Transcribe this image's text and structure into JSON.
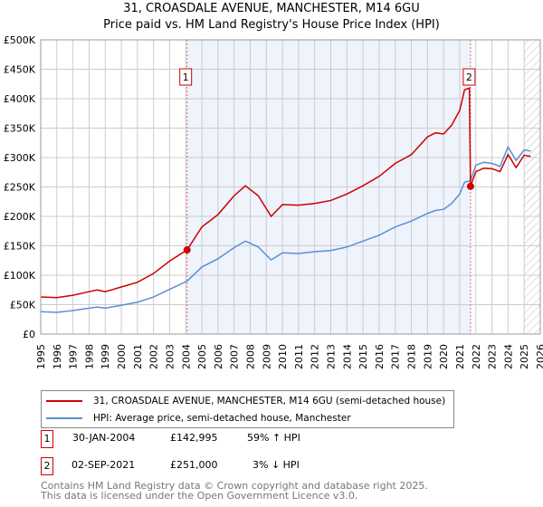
{
  "title": "31, CROASDALE AVENUE, MANCHESTER, M14 6GU",
  "subtitle": "Price paid vs. HM Land Registry's House Price Index (HPI)",
  "chart_data": {
    "type": "line",
    "title": "31, CROASDALE AVENUE, MANCHESTER, M14 6GU",
    "subtitle": "Price paid vs. HM Land Registry's House Price Index (HPI)",
    "xlim": [
      1995,
      2026
    ],
    "ylim": [
      0,
      500000
    ],
    "yticks": [
      0,
      50000,
      100000,
      150000,
      200000,
      250000,
      300000,
      350000,
      400000,
      450000,
      500000
    ],
    "ytick_labels": [
      "£0",
      "£50K",
      "£100K",
      "£150K",
      "£200K",
      "£250K",
      "£300K",
      "£350K",
      "£400K",
      "£450K",
      "£500K"
    ],
    "xticks": [
      "1995",
      "1996",
      "1997",
      "1998",
      "1999",
      "2000",
      "2001",
      "2002",
      "2003",
      "2004",
      "2005",
      "2006",
      "2007",
      "2008",
      "2009",
      "2010",
      "2011",
      "2012",
      "2013",
      "2014",
      "2015",
      "2016",
      "2017",
      "2018",
      "2019",
      "2020",
      "2021",
      "2022",
      "2023",
      "2024",
      "2025",
      "2026"
    ],
    "grid": true,
    "series": [
      {
        "name": "31, CROASDALE AVENUE, MANCHESTER, M14 6GU (semi-detached house)",
        "color": "#cc0000",
        "x": [
          1995,
          1996,
          1997,
          1998,
          1998.5,
          1999,
          2000,
          2001,
          2002,
          2003,
          2004.08,
          2005,
          2006,
          2007,
          2007.7,
          2008.5,
          2009.3,
          2010,
          2011,
          2012,
          2013,
          2014,
          2015,
          2016,
          2017,
          2018,
          2019,
          2019.5,
          2020,
          2020.5,
          2021,
          2021.3,
          2021.6,
          2021.67,
          2022,
          2022.5,
          2023,
          2023.5,
          2024,
          2024.5,
          2025,
          2025.4
        ],
        "y": [
          63000,
          62000,
          66000,
          72000,
          75000,
          72000,
          80000,
          88000,
          103000,
          124000,
          142995,
          182000,
          203000,
          235000,
          252000,
          235000,
          200000,
          220000,
          219000,
          222000,
          227000,
          238000,
          252000,
          268000,
          290000,
          305000,
          335000,
          342000,
          340000,
          355000,
          380000,
          415000,
          418000,
          251000,
          276000,
          282000,
          281000,
          276000,
          305000,
          283000,
          304000,
          302000
        ]
      },
      {
        "name": "HPI: Average price, semi-detached house, Manchester",
        "color": "#5b8fd6",
        "x": [
          1995,
          1996,
          1997,
          1998,
          1998.5,
          1999,
          2000,
          2001,
          2002,
          2003,
          2004.08,
          2005,
          2006,
          2007,
          2007.7,
          2008.5,
          2009.3,
          2010,
          2011,
          2012,
          2013,
          2014,
          2015,
          2016,
          2017,
          2018,
          2019,
          2019.5,
          2020,
          2020.5,
          2021,
          2021.3,
          2021.6,
          2021.67,
          2022,
          2022.5,
          2023,
          2023.5,
          2024,
          2024.5,
          2025,
          2025.4
        ],
        "y": [
          38000,
          37000,
          40000,
          44000,
          46000,
          44000,
          49000,
          54000,
          63000,
          76000,
          90000,
          114000,
          128000,
          147000,
          158000,
          148000,
          126000,
          138000,
          137000,
          140000,
          142000,
          148000,
          158000,
          168000,
          182000,
          192000,
          205000,
          210000,
          212000,
          222000,
          238000,
          258000,
          260000,
          261000,
          287000,
          292000,
          290000,
          285000,
          318000,
          295000,
          313000,
          311000
        ]
      }
    ],
    "annotations": [
      {
        "label": "1",
        "x": 2004.08,
        "price": 142995
      },
      {
        "label": "2",
        "x": 2021.67,
        "price": 251000
      }
    ],
    "shaded_range": [
      2004.08,
      2021.67
    ],
    "forecast_hatch_from": 2025.0
  },
  "legend": {
    "items": [
      {
        "label": "31, CROASDALE AVENUE, MANCHESTER, M14 6GU (semi-detached house)",
        "color": "#cc0000"
      },
      {
        "label": "HPI: Average price, semi-detached house, Manchester",
        "color": "#5b8fd6"
      }
    ]
  },
  "transactions": [
    {
      "num": "1",
      "date": "30-JAN-2004",
      "price": "£142,995",
      "hpi": "59% ↑ HPI"
    },
    {
      "num": "2",
      "date": "02-SEP-2021",
      "price": "£251,000",
      "hpi": "3% ↓ HPI"
    }
  ],
  "footer": {
    "line1": "Contains HM Land Registry data © Crown copyright and database right 2025.",
    "line2": "This data is licensed under the Open Government Licence v3.0."
  }
}
